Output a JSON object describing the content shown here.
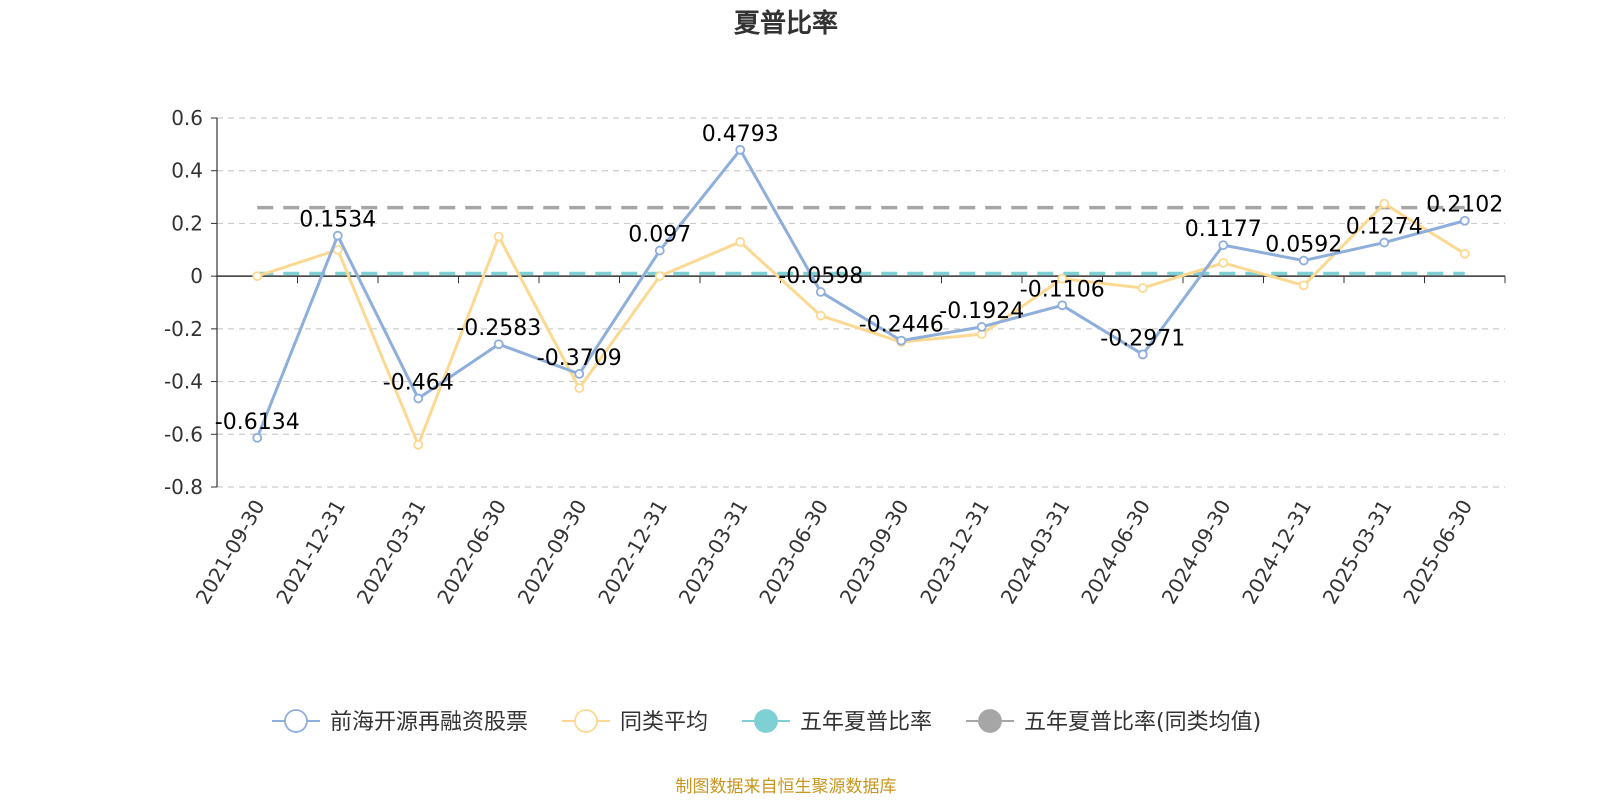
{
  "chart_data": {
    "type": "line",
    "title": "夏普比率",
    "xlabel": "",
    "ylabel": "",
    "ylim": [
      -0.8,
      0.6
    ],
    "yticks": [
      "0.6",
      "0.4",
      "0.2",
      "0",
      "-0.2",
      "-0.4",
      "-0.6",
      "-0.8"
    ],
    "grid": true,
    "legend_position": "bottom",
    "categories": [
      "2021-09-30",
      "2021-12-31",
      "2022-03-31",
      "2022-06-30",
      "2022-09-30",
      "2022-12-31",
      "2023-03-31",
      "2023-06-30",
      "2023-09-30",
      "2023-12-31",
      "2024-03-31",
      "2024-06-30",
      "2024-09-30",
      "2024-12-31",
      "2025-03-31",
      "2025-06-30"
    ],
    "series": [
      {
        "name": "前海开源再融资股票",
        "color": "#8eaedb",
        "values": [
          -0.6134,
          0.1534,
          -0.464,
          -0.2583,
          -0.3709,
          0.097,
          0.4793,
          -0.0598,
          -0.2446,
          -0.1924,
          -0.1106,
          -0.2971,
          0.1177,
          0.0592,
          0.1274,
          0.2102
        ],
        "labels": [
          "-0.6134",
          "0.1534",
          "-0.464",
          "-0.2583",
          "-0.3709",
          "0.097",
          "0.4793",
          "-0.0598",
          "-0.2446",
          "-0.1924",
          "-0.1106",
          "-0.2971",
          "0.1177",
          "0.0592",
          "0.1274",
          "0.2102"
        ]
      },
      {
        "name": "同类平均",
        "color": "#fcd993",
        "values": [
          0.0,
          0.1,
          -0.64,
          0.15,
          -0.425,
          0.0,
          0.13,
          -0.15,
          -0.25,
          -0.22,
          -0.01,
          -0.045,
          0.05,
          -0.035,
          0.275,
          0.085
        ]
      },
      {
        "name": "五年夏普比率",
        "color": "#7fd0d4",
        "constant": 0.01
      },
      {
        "name": "五年夏普比率(同类均值)",
        "color": "#a6a6a6",
        "constant": 0.26
      }
    ]
  },
  "footer": {
    "source": "制图数据来自恒生聚源数据库"
  }
}
